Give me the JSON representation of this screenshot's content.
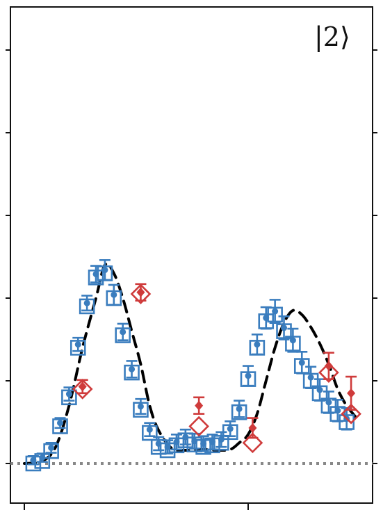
{
  "chart_data": {
    "type": "scatter",
    "panel_label": "|2⟩",
    "title": "",
    "xlabel": "",
    "ylabel": "",
    "xlim": [
      -0.1,
      1.5
    ],
    "ylim": [
      -0.05,
      0.55
    ],
    "x_ticks": [
      0,
      1
    ],
    "y_ticks": [
      0,
      0.1,
      0.2,
      0.3,
      0.4,
      0.5
    ],
    "baseline": 0,
    "grid": false,
    "colors": {
      "blue": "#3a7dbe",
      "red": "#cf3b3b",
      "fit": "#000000",
      "baseline": "#888888"
    },
    "fit_curve": {
      "x": [
        0.0,
        0.08,
        0.14,
        0.2,
        0.26,
        0.32,
        0.36,
        0.4,
        0.44,
        0.48,
        0.52,
        0.56,
        0.6,
        0.66,
        0.72,
        0.8,
        0.86,
        0.92,
        0.96,
        1.0,
        1.04,
        1.08,
        1.12,
        1.16,
        1.2,
        1.24,
        1.28,
        1.32,
        1.36,
        1.4,
        1.44,
        1.5
      ],
      "y": [
        0.0,
        0.003,
        0.02,
        0.07,
        0.14,
        0.2,
        0.24,
        0.23,
        0.2,
        0.16,
        0.12,
        0.07,
        0.04,
        0.018,
        0.016,
        0.017,
        0.016,
        0.017,
        0.025,
        0.035,
        0.06,
        0.1,
        0.14,
        0.17,
        0.185,
        0.18,
        0.165,
        0.145,
        0.12,
        0.09,
        0.07,
        0.05
      ]
    },
    "series": [
      {
        "marker": "square",
        "color": "#3a7dbe",
        "x": [
          0.04,
          0.08,
          0.12,
          0.16,
          0.2,
          0.24,
          0.28,
          0.32,
          0.36,
          0.4,
          0.44,
          0.48,
          0.52,
          0.56,
          0.6,
          0.64,
          0.68,
          0.72,
          0.76,
          0.8,
          0.84,
          0.88,
          0.92,
          0.96,
          1.0,
          1.04,
          1.08,
          1.12,
          1.16,
          1.2,
          1.24,
          1.28,
          1.32,
          1.36,
          1.4,
          1.44
        ],
        "y": [
          0.0,
          0.003,
          0.015,
          0.045,
          0.08,
          0.14,
          0.19,
          0.225,
          0.23,
          0.2,
          0.155,
          0.11,
          0.065,
          0.037,
          0.02,
          0.016,
          0.022,
          0.028,
          0.023,
          0.02,
          0.022,
          0.025,
          0.038,
          0.062,
          0.102,
          0.14,
          0.172,
          0.18,
          0.16,
          0.145,
          0.118,
          0.1,
          0.085,
          0.07,
          0.06,
          0.05
        ],
        "yerr": [
          0.005,
          0.005,
          0.006,
          0.006,
          0.008,
          0.008,
          0.009,
          0.01,
          0.012,
          0.012,
          0.01,
          0.01,
          0.009,
          0.008,
          0.008,
          0.008,
          0.009,
          0.009,
          0.009,
          0.009,
          0.009,
          0.009,
          0.009,
          0.01,
          0.012,
          0.012,
          0.013,
          0.014,
          0.014,
          0.014,
          0.013,
          0.013,
          0.013,
          0.013,
          0.013,
          0.013
        ]
      },
      {
        "marker": "diamond",
        "color": "#cf3b3b",
        "x": [
          0.26,
          0.52,
          0.78,
          1.02,
          1.36,
          1.46
        ],
        "y": [
          0.09,
          0.205,
          0.045,
          0.025,
          0.11,
          0.06
        ],
        "yerr": [
          0.008,
          0.01,
          0.01,
          0.012,
          0.016,
          0.02
        ],
        "filled_y": [
          0.093,
          0.207,
          0.07,
          0.043,
          0.118,
          0.085
        ]
      }
    ]
  }
}
